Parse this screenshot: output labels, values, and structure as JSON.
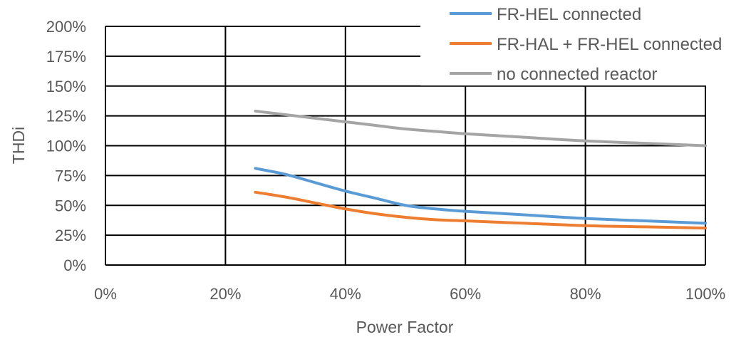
{
  "chart_data": {
    "type": "line",
    "xlabel": "Power Factor",
    "ylabel": "THDi",
    "xlim": [
      0,
      100
    ],
    "ylim": [
      0,
      200
    ],
    "x_ticks": [
      "0%",
      "20%",
      "40%",
      "60%",
      "80%",
      "100%"
    ],
    "y_ticks": [
      "0%",
      "25%",
      "50%",
      "75%",
      "100%",
      "125%",
      "150%",
      "175%",
      "200%"
    ],
    "x_tick_values": [
      0,
      20,
      40,
      60,
      80,
      100
    ],
    "y_tick_values": [
      0,
      25,
      50,
      75,
      100,
      125,
      150,
      175,
      200
    ],
    "grid": true,
    "legend_position": "top-right",
    "series": [
      {
        "name": "FR-HEL connected",
        "color": "#5B9BD5",
        "x": [
          25,
          30,
          35,
          40,
          45,
          50,
          55,
          60,
          70,
          80,
          90,
          100
        ],
        "y": [
          81,
          76,
          69,
          62,
          56,
          50,
          47,
          45,
          42,
          39,
          37,
          35
        ]
      },
      {
        "name": "FR-HAL + FR-HEL connected",
        "color": "#ED7D31",
        "x": [
          25,
          30,
          35,
          40,
          45,
          50,
          55,
          60,
          70,
          80,
          90,
          100
        ],
        "y": [
          61,
          57,
          52,
          47,
          43,
          40,
          38,
          37,
          35,
          33,
          32,
          31
        ]
      },
      {
        "name": "no connected reactor",
        "color": "#A5A5A5",
        "x": [
          25,
          30,
          35,
          40,
          45,
          50,
          55,
          60,
          70,
          80,
          90,
          100
        ],
        "y": [
          129,
          126,
          123,
          120,
          117,
          114,
          112,
          110,
          107,
          104,
          102,
          100
        ]
      }
    ]
  }
}
